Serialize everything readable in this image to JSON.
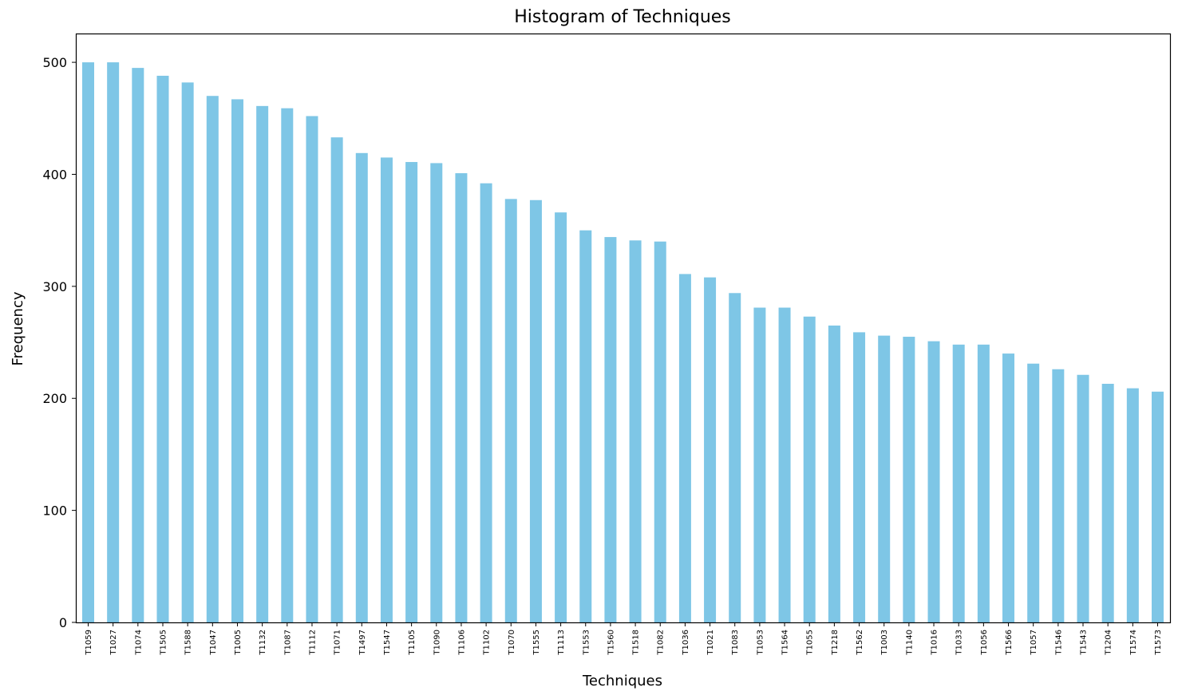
{
  "chart_data": {
    "type": "bar",
    "title": "Histogram of Techniques",
    "xlabel": "Techniques",
    "ylabel": "Frequency",
    "ylim": [
      0,
      525
    ],
    "yticks": [
      0,
      100,
      200,
      300,
      400,
      500
    ],
    "grid": false,
    "legend": "none",
    "bar_color": "#7ec6e6",
    "categories": [
      "T1059",
      "T1027",
      "T1074",
      "T1505",
      "T1588",
      "T1047",
      "T1005",
      "T1132",
      "T1087",
      "T1112",
      "T1071",
      "T1497",
      "T1547",
      "T1105",
      "T1090",
      "T1106",
      "T1102",
      "T1070",
      "T1555",
      "T1113",
      "T1553",
      "T1560",
      "T1518",
      "T1082",
      "T1036",
      "T1021",
      "T1083",
      "T1053",
      "T1564",
      "T1055",
      "T1218",
      "T1562",
      "T1003",
      "T1140",
      "T1016",
      "T1033",
      "T1056",
      "T1566",
      "T1057",
      "T1546",
      "T1543",
      "T1204",
      "T1574",
      "T1573"
    ],
    "values": [
      500,
      500,
      495,
      488,
      482,
      470,
      467,
      461,
      459,
      452,
      433,
      419,
      415,
      411,
      410,
      401,
      392,
      378,
      377,
      366,
      350,
      344,
      341,
      340,
      311,
      308,
      294,
      281,
      281,
      273,
      265,
      259,
      256,
      255,
      251,
      248,
      248,
      240,
      231,
      226,
      221,
      213,
      209,
      206
    ]
  }
}
